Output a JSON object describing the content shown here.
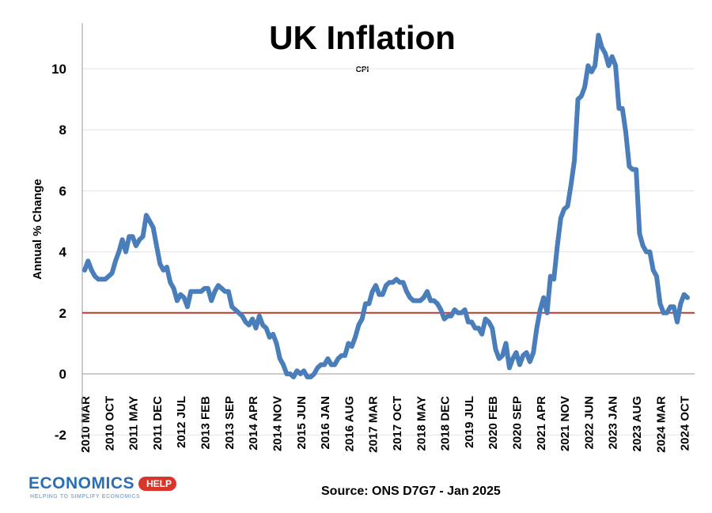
{
  "chart_data": {
    "type": "line",
    "title": "UK Inflation",
    "subtitle": "CPI",
    "ylabel": "Annual % Change",
    "xlabel": "",
    "ylim": [
      -2,
      11.5
    ],
    "yticks": [
      -2,
      0,
      2,
      4,
      6,
      8,
      10
    ],
    "grid": true,
    "legend": "none",
    "reference_line": {
      "y": 2,
      "color": "#c0392b"
    },
    "line_color": "#4a7ebb",
    "x_start": "2010 MAR",
    "x_tick_labels": [
      "2010 MAR",
      "2010 OCT",
      "2011 MAY",
      "2011 DEC",
      "2012 JUL",
      "2013 FEB",
      "2013 SEP",
      "2014 APR",
      "2014 NOV",
      "2015 JUN",
      "2016 JAN",
      "2016 AUG",
      "2017 MAR",
      "2017 OCT",
      "2018 MAY",
      "2018 DEC",
      "2019 JUL",
      "2020 FEB",
      "2020 SEP",
      "2021 APR",
      "2021 NOV",
      "2022 JUN",
      "2023 JAN",
      "2023 AUG",
      "2024 MAR",
      "2024 OCT"
    ],
    "series": [
      {
        "values": [
          3.4,
          3.7,
          3.4,
          3.2,
          3.1,
          3.1,
          3.1,
          3.2,
          3.3,
          3.7,
          4.0,
          4.4,
          4.0,
          4.5,
          4.5,
          4.2,
          4.4,
          4.5,
          5.2,
          5.0,
          4.8,
          4.2,
          3.6,
          3.4,
          3.5,
          3.0,
          2.8,
          2.4,
          2.6,
          2.5,
          2.2,
          2.7,
          2.7,
          2.7,
          2.7,
          2.8,
          2.8,
          2.4,
          2.7,
          2.9,
          2.8,
          2.7,
          2.7,
          2.2,
          2.1,
          2.0,
          1.9,
          1.7,
          1.6,
          1.8,
          1.5,
          1.9,
          1.6,
          1.5,
          1.2,
          1.3,
          1.0,
          0.5,
          0.3,
          0.0,
          0.0,
          -0.1,
          0.1,
          0.0,
          0.1,
          -0.1,
          -0.1,
          0.0,
          0.2,
          0.3,
          0.3,
          0.5,
          0.3,
          0.3,
          0.5,
          0.6,
          0.6,
          1.0,
          0.9,
          1.2,
          1.6,
          1.8,
          2.3,
          2.3,
          2.7,
          2.9,
          2.6,
          2.6,
          2.9,
          3.0,
          3.0,
          3.1,
          3.0,
          3.0,
          2.7,
          2.5,
          2.4,
          2.4,
          2.4,
          2.5,
          2.7,
          2.4,
          2.4,
          2.3,
          2.1,
          1.8,
          1.9,
          1.9,
          2.1,
          2.0,
          2.0,
          2.1,
          1.7,
          1.7,
          1.5,
          1.5,
          1.3,
          1.8,
          1.7,
          1.5,
          0.8,
          0.5,
          0.6,
          1.0,
          0.2,
          0.5,
          0.7,
          0.3,
          0.6,
          0.7,
          0.4,
          0.7,
          1.5,
          2.1,
          2.5,
          2.0,
          3.2,
          3.1,
          4.2,
          5.1,
          5.4,
          5.5,
          6.2,
          7.0,
          9.0,
          9.1,
          9.4,
          10.1,
          9.9,
          10.1,
          11.1,
          10.7,
          10.5,
          10.1,
          10.4,
          10.1,
          8.7,
          8.7,
          7.9,
          6.8,
          6.7,
          6.7,
          4.6,
          4.2,
          4.0,
          4.0,
          3.4,
          3.2,
          2.3,
          2.0,
          2.0,
          2.2,
          2.2,
          1.7,
          2.3,
          2.6,
          2.5
        ]
      }
    ]
  },
  "logo": {
    "main": "ECONOMICS",
    "badge": "HELP",
    "sub": "HELPING TO SIMPLIFY ECONOMICS"
  },
  "source": "Source: ONS D7G7 - Jan 2025"
}
